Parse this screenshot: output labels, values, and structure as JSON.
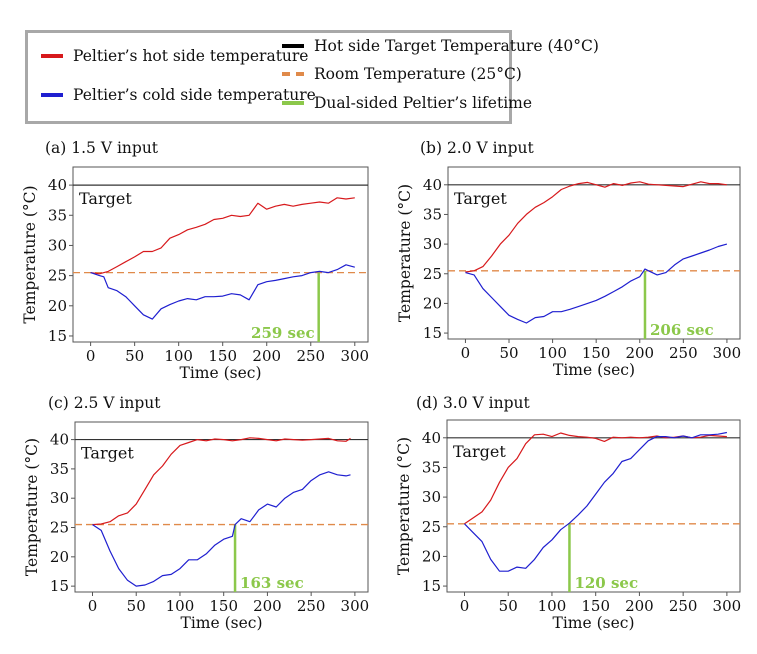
{
  "legend": {
    "items": [
      {
        "label": "Peltier’s hot side temperature",
        "color": "#d7191c",
        "style": "solid"
      },
      {
        "label": "Peltier’s cold side temperature",
        "color": "#1f1fd0",
        "style": "solid"
      },
      {
        "label": "Hot side Target Temperature (40°C)",
        "color": "#000000",
        "style": "solid"
      },
      {
        "label": "Room Temperature (25°C)",
        "color": "#e08a4a",
        "style": "dashed"
      },
      {
        "label": "Dual-sided Peltier’s lifetime",
        "color": "#8cc84b",
        "style": "solid"
      }
    ]
  },
  "chart_data": [
    {
      "type": "line",
      "title": "(a) 1.5 V input",
      "xlabel": "Time (sec)",
      "ylabel": "Temperature (°C)",
      "xlim": [
        -20,
        315
      ],
      "ylim": [
        14,
        43
      ],
      "xticks": [
        0,
        50,
        100,
        150,
        200,
        250,
        300
      ],
      "yticks": [
        15,
        20,
        25,
        30,
        35,
        40
      ],
      "target": 40,
      "target_label": "Target",
      "room_temp": 25.5,
      "lifetime": 259,
      "lifetime_label": "259 sec",
      "series": [
        {
          "name": "Peltier’s hot side temperature",
          "x": [
            0,
            10,
            20,
            30,
            40,
            50,
            60,
            70,
            80,
            90,
            100,
            110,
            120,
            130,
            140,
            150,
            160,
            170,
            180,
            190,
            200,
            210,
            220,
            230,
            240,
            250,
            260,
            270,
            280,
            290,
            300
          ],
          "y": [
            25.5,
            25.3,
            25.7,
            26.5,
            27.3,
            28.1,
            29.0,
            29.0,
            29.6,
            31.2,
            31.8,
            32.6,
            33.0,
            33.5,
            34.3,
            34.5,
            35.0,
            34.8,
            35.0,
            37.0,
            36.0,
            36.5,
            36.8,
            36.5,
            36.8,
            37.0,
            37.2,
            37.0,
            37.9,
            37.7,
            37.9
          ]
        },
        {
          "name": "Peltier’s cold side temperature",
          "x": [
            0,
            10,
            15,
            20,
            30,
            40,
            50,
            60,
            70,
            80,
            90,
            100,
            110,
            120,
            130,
            140,
            150,
            160,
            170,
            180,
            190,
            200,
            210,
            220,
            230,
            240,
            250,
            260,
            270,
            280,
            290,
            300
          ],
          "y": [
            25.5,
            25.0,
            24.8,
            23.0,
            22.5,
            21.5,
            20.0,
            18.5,
            17.8,
            19.5,
            20.2,
            20.8,
            21.2,
            21.0,
            21.5,
            21.5,
            21.6,
            22.0,
            21.8,
            21.0,
            23.5,
            24.0,
            24.2,
            24.5,
            24.8,
            25.0,
            25.5,
            25.7,
            25.5,
            26.0,
            26.8,
            26.4
          ]
        }
      ]
    },
    {
      "type": "line",
      "title": "(b) 2.0 V input",
      "xlabel": "Time (sec)",
      "ylabel": "Temperature (°C)",
      "xlim": [
        -20,
        315
      ],
      "ylim": [
        14,
        43
      ],
      "xticks": [
        0,
        50,
        100,
        150,
        200,
        250,
        300
      ],
      "yticks": [
        15,
        20,
        25,
        30,
        35,
        40
      ],
      "target": 40,
      "target_label": "Target",
      "room_temp": 25.5,
      "lifetime": 206,
      "lifetime_label": "206 sec",
      "series": [
        {
          "name": "Peltier’s hot side temperature",
          "x": [
            0,
            10,
            20,
            30,
            40,
            50,
            60,
            70,
            80,
            90,
            100,
            110,
            120,
            130,
            140,
            150,
            160,
            170,
            180,
            190,
            200,
            210,
            220,
            230,
            240,
            250,
            260,
            270,
            280,
            290,
            300
          ],
          "y": [
            25.3,
            25.5,
            26.2,
            28.0,
            30.0,
            31.5,
            33.5,
            35.0,
            36.2,
            37.0,
            38.0,
            39.2,
            39.8,
            40.2,
            40.4,
            40.0,
            39.6,
            40.2,
            39.9,
            40.3,
            40.5,
            40.1,
            40.0,
            39.9,
            39.8,
            39.7,
            40.1,
            40.5,
            40.2,
            40.2,
            40.0
          ]
        },
        {
          "name": "Peltier’s cold side temperature",
          "x": [
            0,
            10,
            20,
            30,
            40,
            50,
            60,
            70,
            80,
            90,
            100,
            110,
            120,
            130,
            140,
            150,
            160,
            170,
            180,
            190,
            200,
            206,
            210,
            220,
            230,
            240,
            250,
            260,
            270,
            280,
            290,
            300
          ],
          "y": [
            25.2,
            24.8,
            22.5,
            21.0,
            19.5,
            18.0,
            17.3,
            16.7,
            17.6,
            17.8,
            18.6,
            18.6,
            19.0,
            19.5,
            20.0,
            20.5,
            21.2,
            22.0,
            22.8,
            23.8,
            24.5,
            25.8,
            25.5,
            24.8,
            25.2,
            26.5,
            27.5,
            28.0,
            28.5,
            29.0,
            29.6,
            30.0
          ]
        }
      ]
    },
    {
      "type": "line",
      "title": "(c) 2.5 V input",
      "xlabel": "Time (sec)",
      "ylabel": "Temperature (°C)",
      "xlim": [
        -20,
        315
      ],
      "ylim": [
        14,
        43
      ],
      "xticks": [
        0,
        50,
        100,
        150,
        200,
        250,
        300
      ],
      "yticks": [
        15,
        20,
        25,
        30,
        35,
        40
      ],
      "target": 40,
      "target_label": "Target",
      "room_temp": 25.5,
      "lifetime": 163,
      "lifetime_label": "163 sec",
      "series": [
        {
          "name": "Peltier’s hot side temperature",
          "x": [
            0,
            10,
            20,
            30,
            40,
            50,
            60,
            70,
            80,
            90,
            100,
            110,
            120,
            130,
            140,
            150,
            160,
            170,
            180,
            190,
            200,
            210,
            220,
            230,
            240,
            250,
            260,
            270,
            280,
            290,
            295
          ],
          "y": [
            25.5,
            25.6,
            26.0,
            27.0,
            27.5,
            29.0,
            31.5,
            34.0,
            35.5,
            37.5,
            39.0,
            39.5,
            40.0,
            39.8,
            40.1,
            40.0,
            39.8,
            40.0,
            40.3,
            40.2,
            40.0,
            39.8,
            40.1,
            40.0,
            39.9,
            40.0,
            40.1,
            40.2,
            39.8,
            39.7,
            40.2
          ]
        },
        {
          "name": "Peltier’s cold side temperature",
          "x": [
            0,
            10,
            20,
            30,
            40,
            50,
            60,
            70,
            80,
            90,
            100,
            110,
            120,
            130,
            140,
            150,
            160,
            163,
            170,
            180,
            190,
            200,
            210,
            220,
            230,
            240,
            250,
            260,
            270,
            280,
            290,
            295
          ],
          "y": [
            25.5,
            24.5,
            21.0,
            18.0,
            16.0,
            15.0,
            15.2,
            15.8,
            16.8,
            17.0,
            18.0,
            19.5,
            19.5,
            20.5,
            22.0,
            23.0,
            23.5,
            25.5,
            26.5,
            26.0,
            28.0,
            29.0,
            28.5,
            30.0,
            31.0,
            31.5,
            33.0,
            34.0,
            34.5,
            34.0,
            33.8,
            34.0
          ]
        }
      ]
    },
    {
      "type": "line",
      "title": "(d) 3.0 V input",
      "xlabel": "Time (sec)",
      "ylabel": "Temperature (°C)",
      "xlim": [
        -20,
        315
      ],
      "ylim": [
        14,
        43
      ],
      "xticks": [
        0,
        50,
        100,
        150,
        200,
        250,
        300
      ],
      "yticks": [
        15,
        20,
        25,
        30,
        35,
        40
      ],
      "target": 40,
      "target_label": "Target",
      "room_temp": 25.5,
      "lifetime": 120,
      "lifetime_label": "120 sec",
      "series": [
        {
          "name": "Peltier’s hot side temperature",
          "x": [
            0,
            10,
            20,
            30,
            40,
            50,
            60,
            70,
            80,
            90,
            100,
            110,
            120,
            130,
            140,
            150,
            160,
            170,
            180,
            190,
            200,
            210,
            220,
            230,
            240,
            250,
            260,
            270,
            280,
            290,
            300
          ],
          "y": [
            25.5,
            26.5,
            27.5,
            29.5,
            32.5,
            35.0,
            36.5,
            39.0,
            40.5,
            40.6,
            40.2,
            40.8,
            40.4,
            40.2,
            40.1,
            39.9,
            39.4,
            40.1,
            40.0,
            40.1,
            40.0,
            40.1,
            40.3,
            40.0,
            40.1,
            40.3,
            40.0,
            40.1,
            40.4,
            40.3,
            40.2
          ]
        },
        {
          "name": "Peltier’s cold side temperature",
          "x": [
            0,
            10,
            20,
            30,
            40,
            50,
            60,
            70,
            80,
            90,
            100,
            110,
            120,
            130,
            140,
            150,
            160,
            170,
            180,
            190,
            200,
            210,
            220,
            230,
            240,
            250,
            260,
            270,
            280,
            290,
            300
          ],
          "y": [
            25.5,
            24.0,
            22.5,
            19.5,
            17.5,
            17.5,
            18.2,
            18.0,
            19.5,
            21.5,
            22.8,
            24.5,
            25.6,
            27.0,
            28.5,
            30.5,
            32.5,
            34.0,
            36.0,
            36.5,
            38.0,
            39.5,
            40.2,
            40.2,
            40.0,
            40.3,
            40.0,
            40.5,
            40.5,
            40.6,
            40.9
          ]
        }
      ]
    }
  ]
}
